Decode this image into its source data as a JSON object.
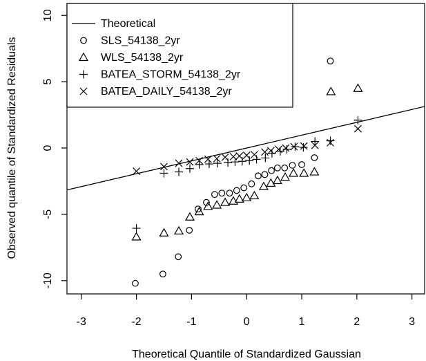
{
  "chart_data": {
    "type": "scatter",
    "xlabel": "Theoretical Quantile of Standardized Gaussian",
    "ylabel": "Observed quantile of Standardized Residuals",
    "xlim": [
      -3.26,
      3.23
    ],
    "ylim": [
      -11.0,
      10.9
    ],
    "xticks": [
      -3,
      -2,
      -1,
      0,
      1,
      2,
      3
    ],
    "yticks": [
      -10,
      -5,
      0,
      5,
      10
    ],
    "legend": "top-left",
    "series": [
      {
        "name": "Theoretical",
        "marker": "line",
        "color": "#000000",
        "x": [
          -3.26,
          3.23
        ],
        "values": [
          -3.16,
          3.13
        ]
      },
      {
        "name": "SLS_54138_2yr",
        "marker": "circle",
        "color": "#000000",
        "x": [
          -2.02,
          -1.52,
          -1.24,
          -1.04,
          -0.88,
          -0.73,
          -0.58,
          -0.45,
          -0.31,
          -0.18,
          -0.05,
          0.09,
          0.21,
          0.33,
          0.45,
          0.56,
          0.69,
          0.83,
          1.0,
          1.23,
          1.52
        ],
        "values": [
          -10.2,
          -9.5,
          -8.2,
          -6.2,
          -4.6,
          -4.1,
          -3.5,
          -3.4,
          -3.4,
          -3.2,
          -3.0,
          -2.7,
          -2.1,
          -2.0,
          -1.7,
          -1.5,
          -1.5,
          -1.3,
          -1.25,
          -0.73,
          6.56
        ]
      },
      {
        "name": "WLS_54138_2yr",
        "marker": "triangle",
        "color": "#000000",
        "x": [
          -2.0,
          -1.5,
          -1.23,
          -1.03,
          -0.86,
          -0.7,
          -0.54,
          -0.39,
          -0.24,
          -0.13,
          0,
          0.14,
          0.31,
          0.44,
          0.56,
          0.7,
          0.85,
          1.04,
          1.23,
          1.53,
          2.02
        ],
        "values": [
          -6.7,
          -6.4,
          -6.25,
          -5.2,
          -4.8,
          -4.4,
          -4.3,
          -4.1,
          -4.0,
          -3.85,
          -3.75,
          -3.6,
          -2.9,
          -2.65,
          -2.45,
          -2.2,
          -1.9,
          -1.9,
          -1.8,
          4.25,
          4.5
        ]
      },
      {
        "name": "BATEA_STORM_54138_2yr",
        "marker": "plus",
        "color": "#000000",
        "x": [
          -2.0,
          -1.5,
          -1.23,
          -1.03,
          -0.86,
          -0.68,
          -0.53,
          -0.34,
          -0.21,
          -0.08,
          0.05,
          0.18,
          0.34,
          0.46,
          0.61,
          0.73,
          0.88,
          1.03,
          1.24,
          1.52,
          2.02
        ],
        "values": [
          -6.05,
          -1.9,
          -1.8,
          -1.55,
          -1.25,
          -1.2,
          -1.15,
          -1.1,
          -1.05,
          -1.0,
          -0.95,
          -0.85,
          -0.75,
          -0.4,
          -0.25,
          -0.1,
          0.1,
          0.05,
          0.5,
          0.55,
          2.1
        ]
      },
      {
        "name": "BATEA_DAILY_54138_2yr",
        "marker": "cross",
        "color": "#000000",
        "x": [
          -2.0,
          -1.5,
          -1.23,
          -1.03,
          -0.86,
          -0.7,
          -0.54,
          -0.39,
          -0.24,
          -0.13,
          0,
          0.14,
          0.33,
          0.44,
          0.58,
          0.71,
          0.86,
          1.04,
          1.24,
          1.52,
          2.02
        ],
        "values": [
          -1.75,
          -1.4,
          -1.15,
          -1.05,
          -0.95,
          -0.85,
          -0.8,
          -0.7,
          -0.65,
          -0.6,
          -0.55,
          -0.5,
          -0.3,
          -0.2,
          -0.1,
          0,
          0.1,
          0.15,
          0.2,
          0.4,
          1.45
        ]
      }
    ]
  }
}
